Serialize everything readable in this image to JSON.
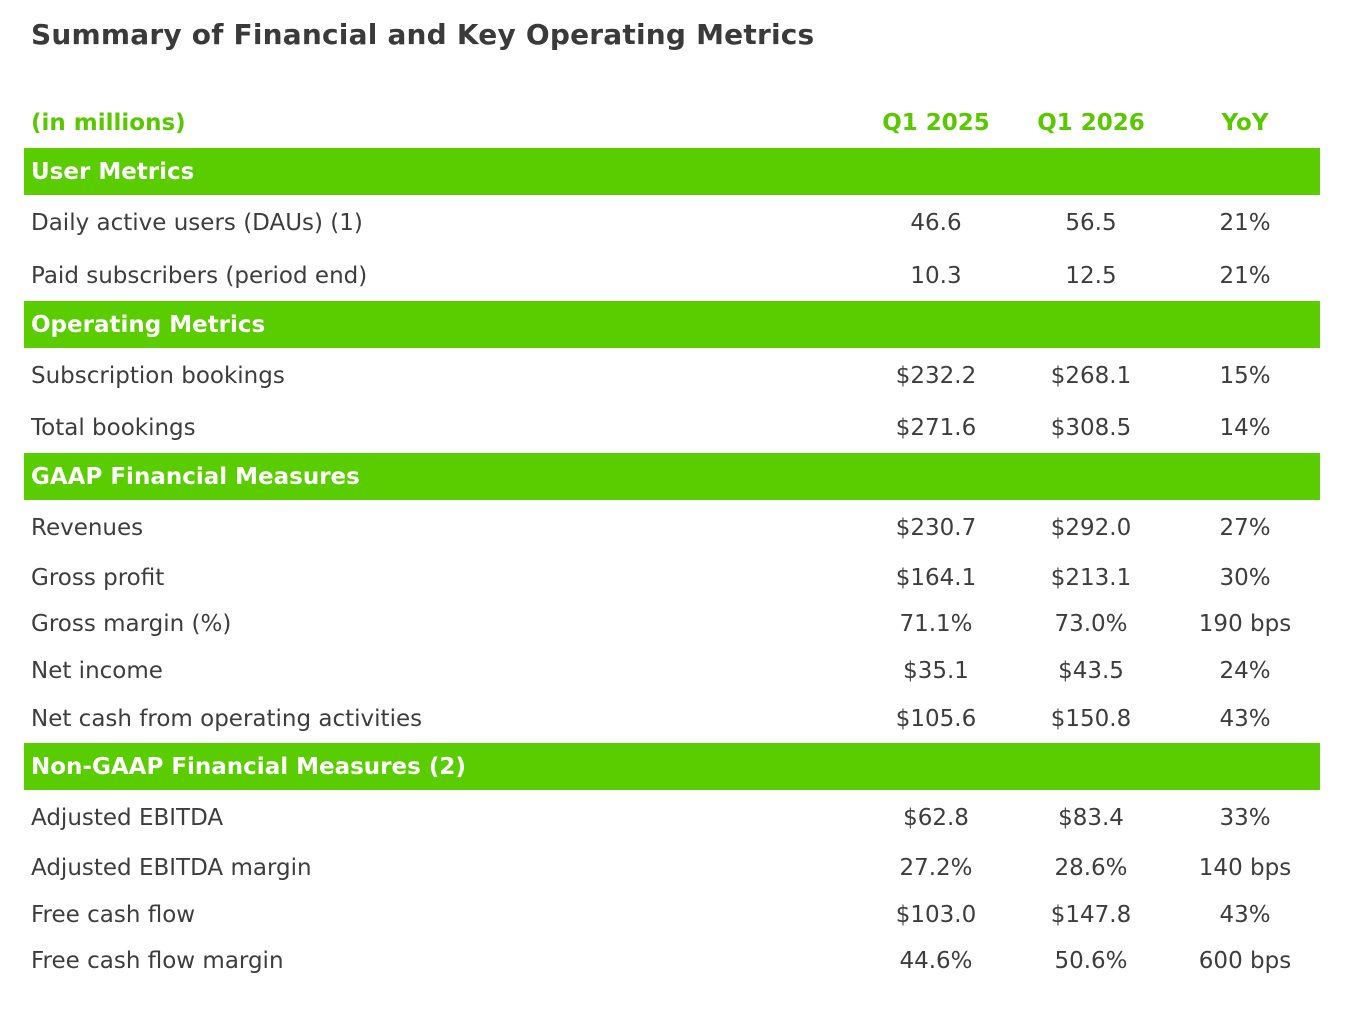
{
  "title": "Summary of Financial and Key Operating Metrics",
  "header": {
    "unit_label": "(in millions)",
    "col1": "Q1 2025",
    "col2": "Q1 2026",
    "col3": "YoY"
  },
  "sections": [
    {
      "label": "User Metrics",
      "rows": [
        {
          "label": "Daily active users (DAUs) (1)",
          "q1_2025": "46.6",
          "q1_2026": "56.5",
          "yoy": "21%"
        },
        {
          "label": "Paid subscribers (period end)",
          "q1_2025": "10.3",
          "q1_2026": "12.5",
          "yoy": "21%"
        }
      ]
    },
    {
      "label": "Operating Metrics",
      "rows": [
        {
          "label": "Subscription bookings",
          "q1_2025": "$232.2",
          "q1_2026": "$268.1",
          "yoy": "15%"
        },
        {
          "label": "Total bookings",
          "q1_2025": "$271.6",
          "q1_2026": "$308.5",
          "yoy": "14%"
        }
      ]
    },
    {
      "label": "GAAP Financial Measures",
      "rows": [
        {
          "label": "Revenues",
          "q1_2025": "$230.7",
          "q1_2026": "$292.0",
          "yoy": "27%"
        },
        {
          "label": "Gross profit",
          "q1_2025": "$164.1",
          "q1_2026": "$213.1",
          "yoy": "30%"
        },
        {
          "label": "Gross margin (%)",
          "q1_2025": "71.1%",
          "q1_2026": "73.0%",
          "yoy": "190 bps"
        },
        {
          "label": "Net income",
          "q1_2025": "$35.1",
          "q1_2026": "$43.5",
          "yoy": "24%"
        },
        {
          "label": "Net cash from operating activities",
          "q1_2025": "$105.6",
          "q1_2026": "$150.8",
          "yoy": "43%"
        }
      ]
    },
    {
      "label": "Non-GAAP Financial Measures (2)",
      "rows": [
        {
          "label": "Adjusted EBITDA",
          "q1_2025": "$62.8",
          "q1_2026": "$83.4",
          "yoy": "33%"
        },
        {
          "label": "Adjusted EBITDA margin",
          "q1_2025": "27.2%",
          "q1_2026": "28.6%",
          "yoy": "140 bps"
        },
        {
          "label": "Free cash flow",
          "q1_2025": "$103.0",
          "q1_2026": "$147.8",
          "yoy": "43%"
        },
        {
          "label": "Free cash flow margin",
          "q1_2025": "44.6%",
          "q1_2026": "50.6%",
          "yoy": "600 bps"
        }
      ]
    }
  ],
  "colors": {
    "accent": "#5acd00",
    "header_text": "#5ac800",
    "body_text": "#3d3d3d"
  }
}
